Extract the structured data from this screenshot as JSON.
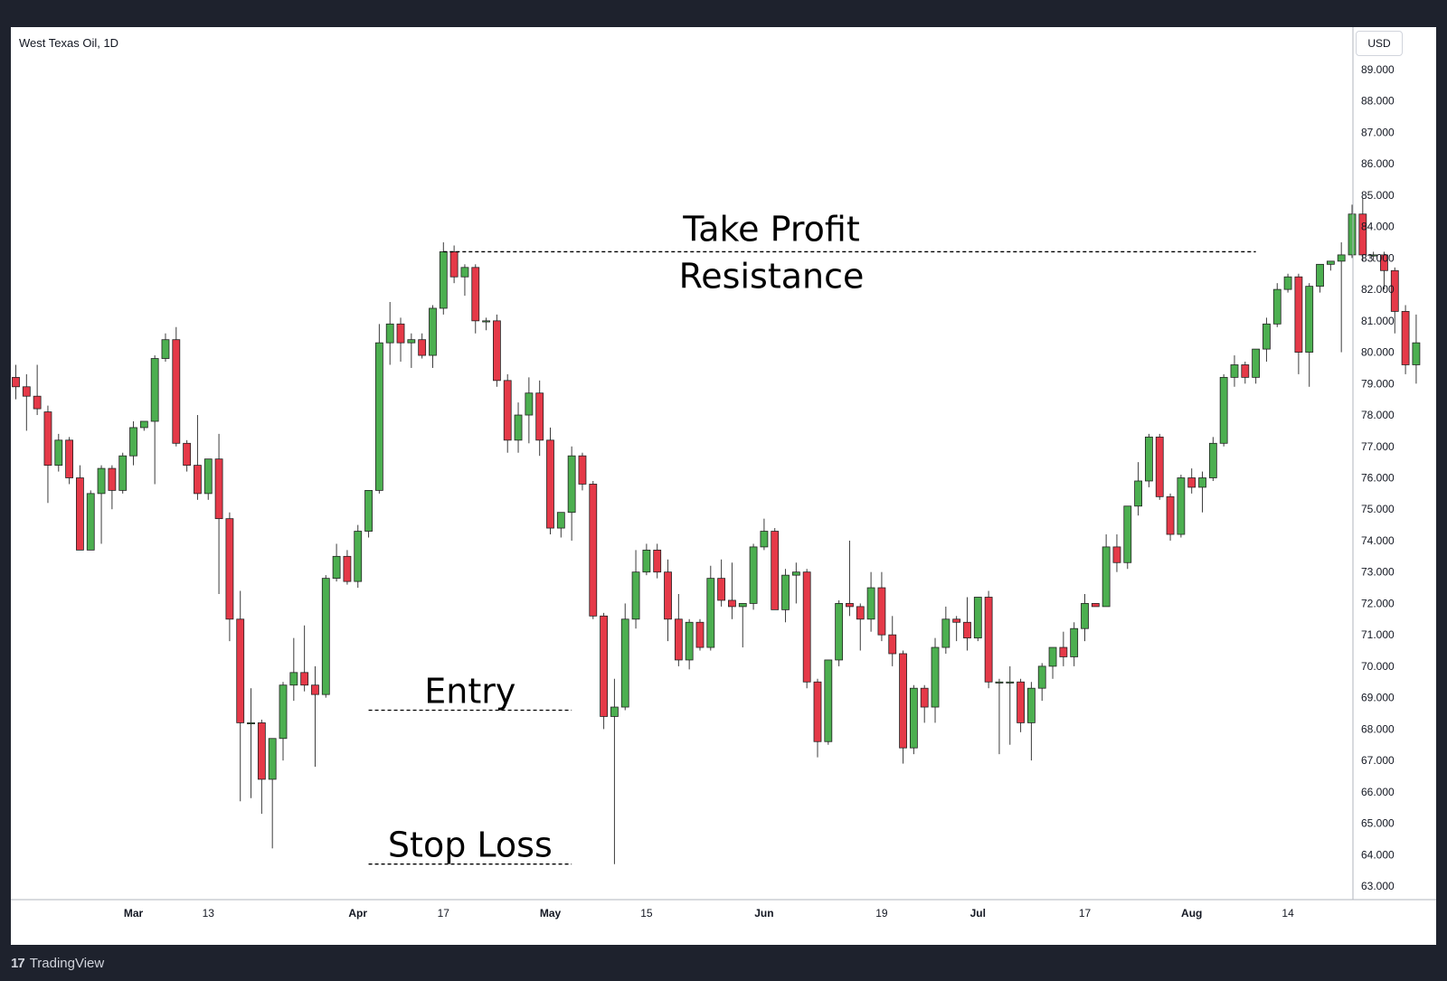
{
  "chart": {
    "title": "West Texas Oil, 1D",
    "currency": "USD",
    "brand": "TradingView",
    "brand_mark": "17"
  },
  "colors": {
    "up": "#4caf50",
    "down": "#e53948",
    "wick": "#3c3c3c",
    "axis_text": "#131722"
  },
  "chart_data": {
    "type": "candlestick",
    "title": "West Texas Oil, 1D",
    "currency": "USD",
    "y_axis": {
      "min": 63,
      "max": 89,
      "ticks": [
        "63.000",
        "64.000",
        "65.000",
        "66.000",
        "67.000",
        "68.000",
        "69.000",
        "70.000",
        "71.000",
        "72.000",
        "73.000",
        "74.000",
        "75.000",
        "76.000",
        "77.000",
        "78.000",
        "79.000",
        "80.000",
        "81.000",
        "82.000",
        "83.000",
        "84.000",
        "85.000",
        "86.000",
        "87.000",
        "88.000",
        "89.000"
      ]
    },
    "x_labels": [
      {
        "label": "Mar",
        "index": 11,
        "bold": true
      },
      {
        "label": "13",
        "index": 18,
        "bold": false
      },
      {
        "label": "Apr",
        "index": 32,
        "bold": true
      },
      {
        "label": "17",
        "index": 40,
        "bold": false
      },
      {
        "label": "May",
        "index": 50,
        "bold": true
      },
      {
        "label": "15",
        "index": 59,
        "bold": false
      },
      {
        "label": "Jun",
        "index": 70,
        "bold": true
      },
      {
        "label": "19",
        "index": 81,
        "bold": false
      },
      {
        "label": "Jul",
        "index": 90,
        "bold": true
      },
      {
        "label": "17",
        "index": 100,
        "bold": false
      },
      {
        "label": "Aug",
        "index": 110,
        "bold": true
      },
      {
        "label": "14",
        "index": 119,
        "bold": false
      }
    ],
    "candles": [
      {
        "o": 79.2,
        "h": 79.6,
        "l": 78.5,
        "c": 78.9
      },
      {
        "o": 78.9,
        "h": 79.3,
        "l": 77.5,
        "c": 78.6
      },
      {
        "o": 78.6,
        "h": 79.6,
        "l": 78.0,
        "c": 78.2
      },
      {
        "o": 78.1,
        "h": 78.3,
        "l": 75.2,
        "c": 76.4
      },
      {
        "o": 76.4,
        "h": 77.4,
        "l": 76.2,
        "c": 77.2
      },
      {
        "o": 77.2,
        "h": 77.3,
        "l": 75.8,
        "c": 76.0
      },
      {
        "o": 76.0,
        "h": 76.4,
        "l": 73.7,
        "c": 73.7
      },
      {
        "o": 73.7,
        "h": 75.6,
        "l": 73.7,
        "c": 75.5
      },
      {
        "o": 75.5,
        "h": 76.4,
        "l": 73.9,
        "c": 76.3
      },
      {
        "o": 76.3,
        "h": 76.4,
        "l": 75.0,
        "c": 75.6
      },
      {
        "o": 75.6,
        "h": 76.8,
        "l": 75.5,
        "c": 76.7
      },
      {
        "o": 76.7,
        "h": 77.8,
        "l": 76.4,
        "c": 77.6
      },
      {
        "o": 77.6,
        "h": 77.8,
        "l": 77.5,
        "c": 77.8
      },
      {
        "o": 77.8,
        "h": 79.9,
        "l": 75.8,
        "c": 79.8
      },
      {
        "o": 79.8,
        "h": 80.6,
        "l": 79.7,
        "c": 80.4
      },
      {
        "o": 80.4,
        "h": 80.8,
        "l": 77.0,
        "c": 77.1
      },
      {
        "o": 77.1,
        "h": 77.2,
        "l": 76.2,
        "c": 76.4
      },
      {
        "o": 76.4,
        "h": 78.0,
        "l": 75.3,
        "c": 75.5
      },
      {
        "o": 75.5,
        "h": 76.6,
        "l": 75.3,
        "c": 76.6
      },
      {
        "o": 76.6,
        "h": 77.4,
        "l": 72.3,
        "c": 74.7
      },
      {
        "o": 74.7,
        "h": 74.9,
        "l": 70.8,
        "c": 71.5
      },
      {
        "o": 71.5,
        "h": 72.4,
        "l": 65.7,
        "c": 68.2
      },
      {
        "o": 68.2,
        "h": 69.3,
        "l": 65.8,
        "c": 68.2
      },
      {
        "o": 68.2,
        "h": 68.3,
        "l": 65.3,
        "c": 66.4
      },
      {
        "o": 66.4,
        "h": 67.7,
        "l": 64.2,
        "c": 67.7
      },
      {
        "o": 67.7,
        "h": 69.5,
        "l": 67.0,
        "c": 69.4
      },
      {
        "o": 69.4,
        "h": 70.9,
        "l": 68.9,
        "c": 69.8
      },
      {
        "o": 69.8,
        "h": 71.3,
        "l": 69.2,
        "c": 69.4
      },
      {
        "o": 69.4,
        "h": 70.0,
        "l": 66.8,
        "c": 69.1
      },
      {
        "o": 69.1,
        "h": 72.9,
        "l": 69.0,
        "c": 72.8
      },
      {
        "o": 72.8,
        "h": 73.9,
        "l": 72.7,
        "c": 73.5
      },
      {
        "o": 73.5,
        "h": 73.7,
        "l": 72.6,
        "c": 72.7
      },
      {
        "o": 72.7,
        "h": 74.5,
        "l": 72.5,
        "c": 74.3
      },
      {
        "o": 74.3,
        "h": 75.6,
        "l": 74.1,
        "c": 75.6
      },
      {
        "o": 75.6,
        "h": 80.9,
        "l": 75.5,
        "c": 80.3
      },
      {
        "o": 80.3,
        "h": 81.6,
        "l": 79.6,
        "c": 80.9
      },
      {
        "o": 80.9,
        "h": 81.1,
        "l": 79.7,
        "c": 80.3
      },
      {
        "o": 80.3,
        "h": 80.6,
        "l": 79.5,
        "c": 80.4
      },
      {
        "o": 80.4,
        "h": 80.6,
        "l": 79.8,
        "c": 79.9
      },
      {
        "o": 79.9,
        "h": 81.5,
        "l": 79.5,
        "c": 81.4
      },
      {
        "o": 81.4,
        "h": 83.5,
        "l": 81.2,
        "c": 83.2
      },
      {
        "o": 83.2,
        "h": 83.4,
        "l": 82.2,
        "c": 82.4
      },
      {
        "o": 82.4,
        "h": 82.8,
        "l": 81.8,
        "c": 82.7
      },
      {
        "o": 82.7,
        "h": 82.8,
        "l": 80.6,
        "c": 81.0
      },
      {
        "o": 81.0,
        "h": 81.1,
        "l": 80.7,
        "c": 81.0
      },
      {
        "o": 81.0,
        "h": 81.2,
        "l": 78.9,
        "c": 79.1
      },
      {
        "o": 79.1,
        "h": 79.3,
        "l": 76.8,
        "c": 77.2
      },
      {
        "o": 77.2,
        "h": 78.4,
        "l": 76.8,
        "c": 78.0
      },
      {
        "o": 78.0,
        "h": 79.2,
        "l": 77.1,
        "c": 78.7
      },
      {
        "o": 78.7,
        "h": 79.1,
        "l": 76.7,
        "c": 77.2
      },
      {
        "o": 77.2,
        "h": 77.6,
        "l": 74.2,
        "c": 74.4
      },
      {
        "o": 74.4,
        "h": 74.9,
        "l": 74.1,
        "c": 74.9
      },
      {
        "o": 74.9,
        "h": 77.0,
        "l": 74.0,
        "c": 76.7
      },
      {
        "o": 76.7,
        "h": 76.8,
        "l": 75.6,
        "c": 75.8
      },
      {
        "o": 75.8,
        "h": 75.9,
        "l": 71.5,
        "c": 71.6
      },
      {
        "o": 71.6,
        "h": 71.7,
        "l": 68.0,
        "c": 68.4
      },
      {
        "o": 68.4,
        "h": 69.6,
        "l": 63.7,
        "c": 68.7
      },
      {
        "o": 68.7,
        "h": 72.0,
        "l": 68.6,
        "c": 71.5
      },
      {
        "o": 71.5,
        "h": 73.7,
        "l": 71.2,
        "c": 73.0
      },
      {
        "o": 73.0,
        "h": 73.9,
        "l": 72.9,
        "c": 73.7
      },
      {
        "o": 73.7,
        "h": 73.9,
        "l": 72.8,
        "c": 73.0
      },
      {
        "o": 73.0,
        "h": 73.4,
        "l": 70.8,
        "c": 71.5
      },
      {
        "o": 71.5,
        "h": 72.3,
        "l": 70.0,
        "c": 70.2
      },
      {
        "o": 70.2,
        "h": 71.5,
        "l": 69.9,
        "c": 71.4
      },
      {
        "o": 71.4,
        "h": 71.5,
        "l": 70.5,
        "c": 70.6
      },
      {
        "o": 70.6,
        "h": 73.2,
        "l": 70.5,
        "c": 72.8
      },
      {
        "o": 72.8,
        "h": 73.4,
        "l": 71.9,
        "c": 72.1
      },
      {
        "o": 72.1,
        "h": 73.3,
        "l": 71.5,
        "c": 71.9
      },
      {
        "o": 71.9,
        "h": 72.0,
        "l": 70.6,
        "c": 72.0
      },
      {
        "o": 72.0,
        "h": 73.9,
        "l": 71.8,
        "c": 73.8
      },
      {
        "o": 73.8,
        "h": 74.7,
        "l": 73.7,
        "c": 74.3
      },
      {
        "o": 74.3,
        "h": 74.4,
        "l": 71.8,
        "c": 71.8
      },
      {
        "o": 71.8,
        "h": 73.1,
        "l": 71.4,
        "c": 72.9
      },
      {
        "o": 72.9,
        "h": 73.3,
        "l": 72.0,
        "c": 73.0
      },
      {
        "o": 73.0,
        "h": 73.1,
        "l": 69.3,
        "c": 69.5
      },
      {
        "o": 69.5,
        "h": 69.6,
        "l": 67.1,
        "c": 67.6
      },
      {
        "o": 67.6,
        "h": 70.2,
        "l": 67.5,
        "c": 70.2
      },
      {
        "o": 70.2,
        "h": 72.1,
        "l": 70.0,
        "c": 72.0
      },
      {
        "o": 72.0,
        "h": 74.0,
        "l": 71.6,
        "c": 71.9
      },
      {
        "o": 71.9,
        "h": 72.0,
        "l": 70.5,
        "c": 71.5
      },
      {
        "o": 71.5,
        "h": 73.0,
        "l": 71.1,
        "c": 72.5
      },
      {
        "o": 72.5,
        "h": 73.0,
        "l": 70.8,
        "c": 71.0
      },
      {
        "o": 71.0,
        "h": 71.6,
        "l": 70.0,
        "c": 70.4
      },
      {
        "o": 70.4,
        "h": 70.5,
        "l": 66.9,
        "c": 67.4
      },
      {
        "o": 67.4,
        "h": 69.4,
        "l": 67.2,
        "c": 69.3
      },
      {
        "o": 69.3,
        "h": 69.4,
        "l": 68.2,
        "c": 68.7
      },
      {
        "o": 68.7,
        "h": 70.9,
        "l": 68.2,
        "c": 70.6
      },
      {
        "o": 70.6,
        "h": 71.9,
        "l": 70.4,
        "c": 71.5
      },
      {
        "o": 71.5,
        "h": 71.6,
        "l": 70.8,
        "c": 71.4
      },
      {
        "o": 71.4,
        "h": 72.2,
        "l": 70.5,
        "c": 70.9
      },
      {
        "o": 70.9,
        "h": 72.2,
        "l": 70.8,
        "c": 72.2
      },
      {
        "o": 72.2,
        "h": 72.4,
        "l": 69.3,
        "c": 69.5
      },
      {
        "o": 69.5,
        "h": 69.6,
        "l": 67.2,
        "c": 69.5
      },
      {
        "o": 69.5,
        "h": 70.0,
        "l": 67.5,
        "c": 69.5
      },
      {
        "o": 69.5,
        "h": 69.6,
        "l": 67.9,
        "c": 68.2
      },
      {
        "o": 68.2,
        "h": 69.5,
        "l": 67.0,
        "c": 69.3
      },
      {
        "o": 69.3,
        "h": 70.1,
        "l": 68.9,
        "c": 70.0
      },
      {
        "o": 70.0,
        "h": 70.6,
        "l": 69.6,
        "c": 70.6
      },
      {
        "o": 70.6,
        "h": 71.1,
        "l": 70.0,
        "c": 70.3
      },
      {
        "o": 70.3,
        "h": 71.4,
        "l": 70.0,
        "c": 71.2
      },
      {
        "o": 71.2,
        "h": 72.3,
        "l": 70.8,
        "c": 72.0
      },
      {
        "o": 72.0,
        "h": 72.0,
        "l": 71.9,
        "c": 71.9
      },
      {
        "o": 71.9,
        "h": 74.2,
        "l": 71.9,
        "c": 73.8
      },
      {
        "o": 73.8,
        "h": 74.2,
        "l": 73.0,
        "c": 73.3
      },
      {
        "o": 73.3,
        "h": 75.1,
        "l": 73.1,
        "c": 75.1
      },
      {
        "o": 75.1,
        "h": 76.5,
        "l": 74.8,
        "c": 75.9
      },
      {
        "o": 75.9,
        "h": 77.4,
        "l": 75.7,
        "c": 77.3
      },
      {
        "o": 77.3,
        "h": 77.4,
        "l": 75.3,
        "c": 75.4
      },
      {
        "o": 75.4,
        "h": 75.5,
        "l": 74.0,
        "c": 74.2
      },
      {
        "o": 74.2,
        "h": 76.1,
        "l": 74.1,
        "c": 76.0
      },
      {
        "o": 76.0,
        "h": 76.3,
        "l": 75.5,
        "c": 75.7
      },
      {
        "o": 75.7,
        "h": 76.2,
        "l": 74.9,
        "c": 76.0
      },
      {
        "o": 76.0,
        "h": 77.3,
        "l": 75.9,
        "c": 77.1
      },
      {
        "o": 77.1,
        "h": 79.3,
        "l": 77.0,
        "c": 79.2
      },
      {
        "o": 79.2,
        "h": 79.9,
        "l": 78.9,
        "c": 79.6
      },
      {
        "o": 79.6,
        "h": 79.7,
        "l": 79.0,
        "c": 79.2
      },
      {
        "o": 79.2,
        "h": 80.1,
        "l": 79.0,
        "c": 80.1
      },
      {
        "o": 80.1,
        "h": 81.1,
        "l": 79.7,
        "c": 80.9
      },
      {
        "o": 80.9,
        "h": 82.2,
        "l": 80.8,
        "c": 82.0
      },
      {
        "o": 82.0,
        "h": 82.5,
        "l": 81.9,
        "c": 82.4
      },
      {
        "o": 82.4,
        "h": 82.5,
        "l": 79.3,
        "c": 80.0
      },
      {
        "o": 80.0,
        "h": 82.2,
        "l": 78.9,
        "c": 82.1
      },
      {
        "o": 82.1,
        "h": 82.8,
        "l": 81.9,
        "c": 82.8
      },
      {
        "o": 82.8,
        "h": 82.9,
        "l": 82.6,
        "c": 82.9
      },
      {
        "o": 82.9,
        "h": 83.5,
        "l": 80.0,
        "c": 83.1
      },
      {
        "o": 83.1,
        "h": 84.7,
        "l": 83.0,
        "c": 84.4
      },
      {
        "o": 84.4,
        "h": 84.9,
        "l": 82.9,
        "c": 83.1
      },
      {
        "o": 83.1,
        "h": 83.2,
        "l": 82.9,
        "c": 83.1
      },
      {
        "o": 83.1,
        "h": 83.2,
        "l": 82.0,
        "c": 82.6
      },
      {
        "o": 82.6,
        "h": 82.7,
        "l": 80.6,
        "c": 81.3
      },
      {
        "o": 81.3,
        "h": 81.5,
        "l": 79.3,
        "c": 79.6
      },
      {
        "o": 79.6,
        "h": 81.2,
        "l": 79.0,
        "c": 80.3
      }
    ],
    "annotations": {
      "take_profit": {
        "label": "Take Profit",
        "sublabel": "Resistance",
        "price": 83.2,
        "from_index": 40,
        "to_index": 116
      },
      "entry": {
        "label": "Entry",
        "price": 68.6,
        "from_index": 33,
        "to_index": 52
      },
      "stop_loss": {
        "label": "Stop Loss",
        "price": 63.7,
        "from_index": 33,
        "to_index": 52
      }
    }
  }
}
